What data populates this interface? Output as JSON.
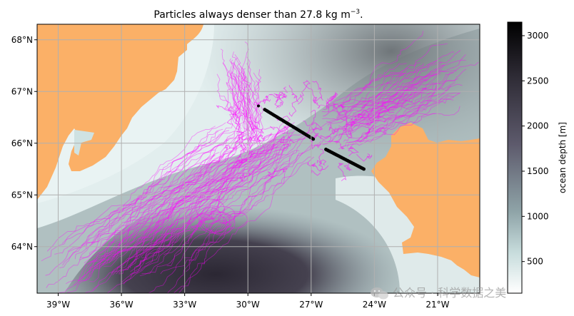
{
  "title": {
    "main": "Particles always denser than 27.8 kg m",
    "sup": "−3",
    "end": "."
  },
  "x_ticks": [
    "39°W",
    "36°W",
    "33°W",
    "30°W",
    "27°W",
    "24°W",
    "21°W"
  ],
  "y_ticks": [
    "68°N",
    "67°N",
    "66°N",
    "65°N",
    "64°N"
  ],
  "colorbar": {
    "label": "ocean depth [m]",
    "ticks": [
      "3000",
      "2500",
      "2000",
      "1500",
      "1000",
      "500"
    ],
    "range": [
      150,
      3150
    ]
  },
  "map": {
    "lon_range": [
      -40,
      -19
    ],
    "lat_range": [
      63.1,
      68.3
    ],
    "land_color": "#fbb067",
    "particle_color": "#ff00ff",
    "release_point_color": "#000000",
    "release_segments": [
      {
        "from": [
          -29.2,
          66.65
        ],
        "to": [
          -26.9,
          66.08
        ]
      },
      {
        "from": [
          -26.3,
          65.88
        ],
        "to": [
          -24.5,
          65.5
        ]
      }
    ],
    "release_outlier": [
      -29.5,
      66.72
    ]
  },
  "watermark": "公众号 · 科学数据之美",
  "watermark_icon": "wechat-icon"
}
